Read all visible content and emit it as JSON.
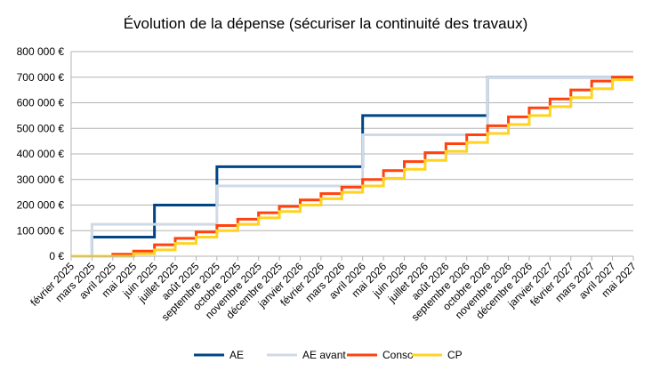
{
  "colors": {
    "AE": "#004586",
    "AE avant": "#d0dae6",
    "Conso": "#ff420e",
    "CP": "#ffd320",
    "grid": "#b3b3b3"
  },
  "chart_data": {
    "type": "line",
    "step": true,
    "title": "Évolution de la dépense (sécuriser la continuité des travaux)",
    "xlabel": "",
    "ylabel": "",
    "ylim": [
      0,
      800000
    ],
    "yticks": [
      0,
      100000,
      200000,
      300000,
      400000,
      500000,
      600000,
      700000,
      800000
    ],
    "ytick_labels": [
      "0 €",
      "100 000 €",
      "200 000 €",
      "300 000 €",
      "400 000 €",
      "500 000 €",
      "600 000 €",
      "700 000 €",
      "800 000 €"
    ],
    "grid": true,
    "legend_position": "bottom",
    "categories": [
      "février 2025",
      "mars 2025",
      "avril 2025",
      "mai 2025",
      "juin 2025",
      "juillet 2025",
      "août 2025",
      "septembre 2025",
      "octobre 2025",
      "novembre 2025",
      "décembre 2025",
      "janvier 2026",
      "février 2026",
      "mars 2026",
      "avril 2026",
      "mai 2026",
      "juin 2026",
      "juillet 2026",
      "août 2026",
      "septembre 2026",
      "octobre 2026",
      "novembre 2026",
      "décembre 2026",
      "janvier 2027",
      "février 2027",
      "mars 2027",
      "avril 2027",
      "mai 2027"
    ],
    "series": [
      {
        "name": "AE",
        "values": [
          0,
          75000,
          75000,
          75000,
          200000,
          200000,
          200000,
          350000,
          350000,
          350000,
          350000,
          350000,
          350000,
          350000,
          550000,
          550000,
          550000,
          550000,
          550000,
          550000,
          700000,
          700000,
          700000,
          700000,
          700000,
          700000,
          700000,
          700000
        ]
      },
      {
        "name": "AE avant",
        "values": [
          0,
          125000,
          125000,
          125000,
          125000,
          125000,
          125000,
          275000,
          275000,
          275000,
          275000,
          275000,
          275000,
          275000,
          475000,
          475000,
          475000,
          475000,
          475000,
          475000,
          700000,
          700000,
          700000,
          700000,
          700000,
          700000,
          700000,
          700000
        ]
      },
      {
        "name": "Conso",
        "values": [
          0,
          0,
          8000,
          20000,
          45000,
          70000,
          95000,
          120000,
          145000,
          170000,
          195000,
          220000,
          245000,
          270000,
          300000,
          335000,
          370000,
          405000,
          440000,
          475000,
          510000,
          545000,
          580000,
          615000,
          650000,
          685000,
          700000,
          700000
        ]
      },
      {
        "name": "CP",
        "values": [
          0,
          0,
          0,
          10000,
          25000,
          50000,
          75000,
          100000,
          125000,
          150000,
          175000,
          200000,
          225000,
          250000,
          275000,
          305000,
          340000,
          375000,
          410000,
          445000,
          480000,
          515000,
          550000,
          585000,
          620000,
          655000,
          690000,
          690000
        ]
      }
    ]
  }
}
